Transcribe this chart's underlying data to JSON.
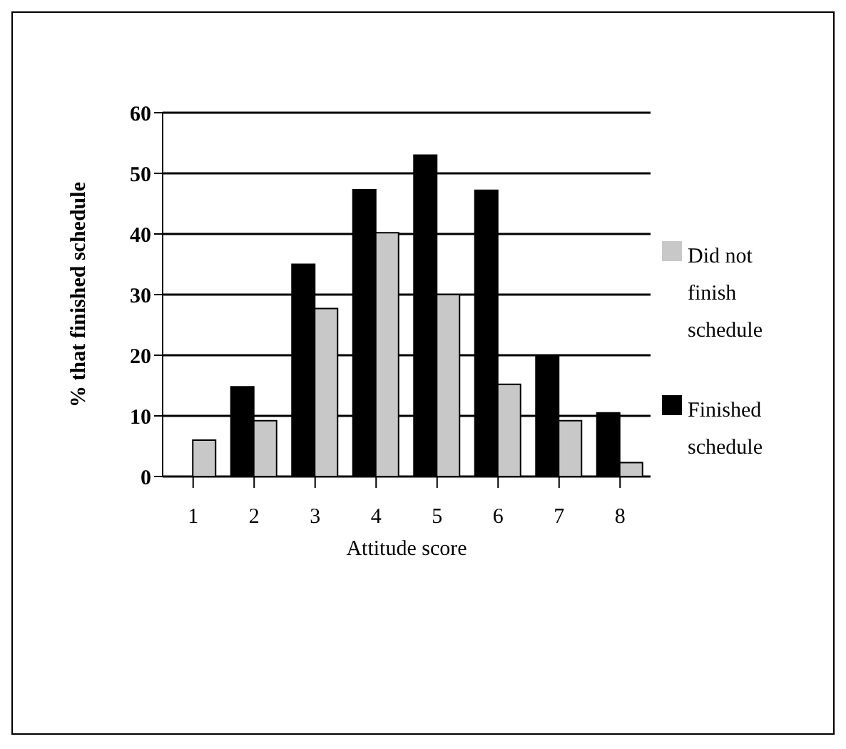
{
  "chart_data": {
    "type": "bar",
    "xlabel": "Attitude score",
    "ylabel": "% that finished schedule",
    "categories": [
      "1",
      "2",
      "3",
      "4",
      "5",
      "6",
      "7",
      "8"
    ],
    "series": [
      {
        "name": "Finished schedule",
        "color": "#000000",
        "values": [
          0,
          14.8,
          35,
          47.3,
          53,
          47.2,
          20,
          10.5
        ]
      },
      {
        "name": "Did not finish schedule",
        "color": "#c8c8c8",
        "values": [
          6,
          9.2,
          27.7,
          40.2,
          30,
          15.2,
          9.2,
          2.3
        ]
      }
    ],
    "ylim": [
      0,
      60
    ],
    "yticks": [
      0,
      10,
      20,
      30,
      40,
      50,
      60
    ],
    "grid": "y",
    "legend": "right"
  }
}
